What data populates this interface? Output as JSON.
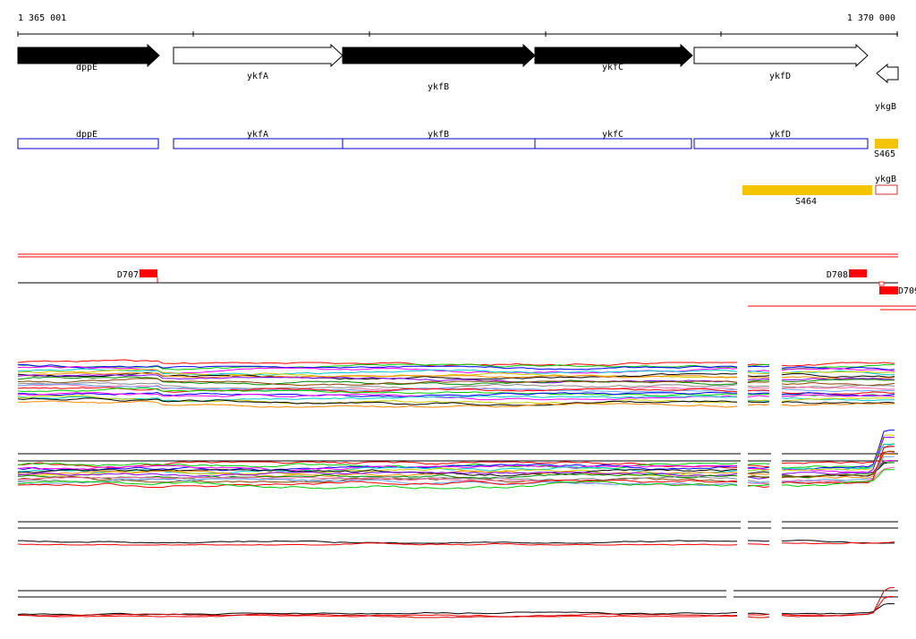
{
  "ruler": {
    "start_label": "1 365 001",
    "end_label": "1 370 000"
  },
  "genes": [
    {
      "name": "dppE",
      "strand": "+",
      "filled": true
    },
    {
      "name": "ykfA",
      "strand": "+",
      "filled": false
    },
    {
      "name": "ykfB",
      "strand": "+",
      "filled": true
    },
    {
      "name": "ykfC",
      "strand": "+",
      "filled": true
    },
    {
      "name": "ykfD",
      "strand": "+",
      "filled": false
    },
    {
      "name": "ykgB",
      "strand": "-",
      "filled": false
    }
  ],
  "annotation_boxes": [
    {
      "label": "dppE"
    },
    {
      "label": "ykfA"
    },
    {
      "label": "ykfB"
    },
    {
      "label": "ykfC"
    },
    {
      "label": "ykfD"
    },
    {
      "label": "ykgB"
    }
  ],
  "features": [
    {
      "label": "S465"
    },
    {
      "label": "S464"
    }
  ],
  "d_markers": [
    {
      "label": "D707"
    },
    {
      "label": "D708"
    },
    {
      "label": "D709"
    }
  ],
  "colors": {
    "gene_fill": "#000000",
    "box_border": "#0000cc",
    "feature": "#f5c400",
    "marker": "#ff0000",
    "ykgB_box_border": "#cc3333",
    "track_palette": [
      "#ff0000",
      "#00cc00",
      "#0000ff",
      "#ff00ff",
      "#00cccc",
      "#cccc00",
      "#000000",
      "#ff8800",
      "#8800ff",
      "#008800",
      "#884400",
      "#888888",
      "#ff66aa",
      "#66aaff"
    ]
  }
}
